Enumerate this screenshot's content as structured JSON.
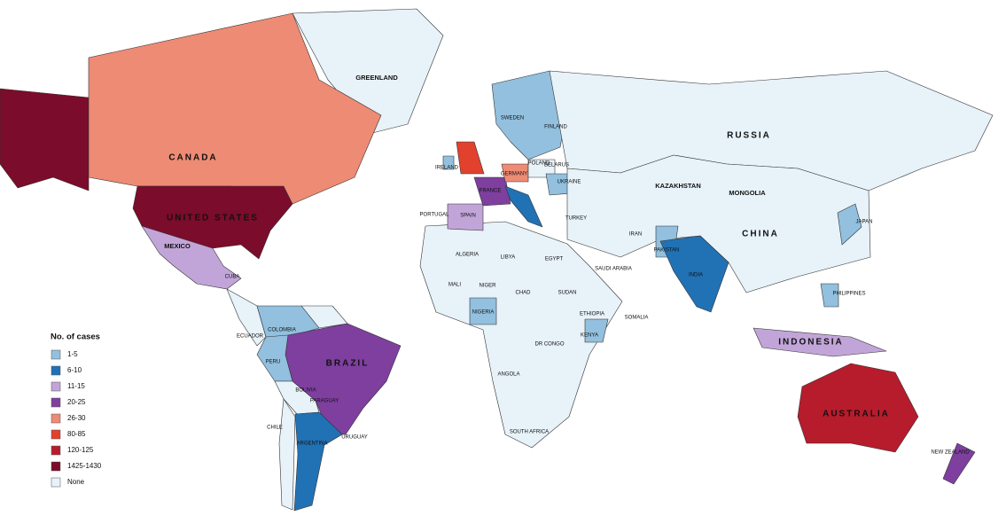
{
  "legend": {
    "title": "No. of cases",
    "items": [
      {
        "label": "1-5",
        "color": "#92c0de"
      },
      {
        "label": "6-10",
        "color": "#2171b5"
      },
      {
        "label": "11-15",
        "color": "#c2a5d8"
      },
      {
        "label": "20-25",
        "color": "#7e3f9f"
      },
      {
        "label": "26-30",
        "color": "#ee8b74"
      },
      {
        "label": "80-85",
        "color": "#e2412e"
      },
      {
        "label": "120-125",
        "color": "#b71c2c"
      },
      {
        "label": "1425-1430",
        "color": "#7b0c2b"
      },
      {
        "label": "None",
        "color": "#e7f2f9"
      }
    ]
  },
  "countries": [
    "GREENLAND",
    "CANADA",
    "UNITED STATES",
    "MEXICO",
    "RUSSIA",
    "CHINA",
    "KAZAKHSTAN",
    "MONGOLIA",
    "INDIA",
    "PAKISTAN",
    "BRAZIL",
    "ARGENTINA",
    "CHILE",
    "BOLIVIA",
    "PERU",
    "COLOMBIA",
    "AUSTRALIA",
    "NEW ZEALAND",
    "INDONESIA",
    "ALGERIA",
    "LIBYA",
    "EGYPT",
    "NIGERIA",
    "KENYA",
    "DR CONGO",
    "SOUTH AFRICA",
    "ETHIOPIA",
    "SUDAN",
    "CHAD",
    "NIGER",
    "MALI",
    "SOMALIA",
    "SAUDI ARABIA",
    "IRAN",
    "TURKEY",
    "SPAIN",
    "FRANCE",
    "GERMANY",
    "POLAND",
    "UKRAINE",
    "SWEDEN",
    "FINLAND",
    "JAPAN",
    "PHILIPPINES",
    "ANGOLA",
    "PORTUGAL",
    "IRELAND",
    "BELARUS",
    "CUBA",
    "ECUADOR",
    "URUGUAY",
    "PARAGUAY"
  ]
}
